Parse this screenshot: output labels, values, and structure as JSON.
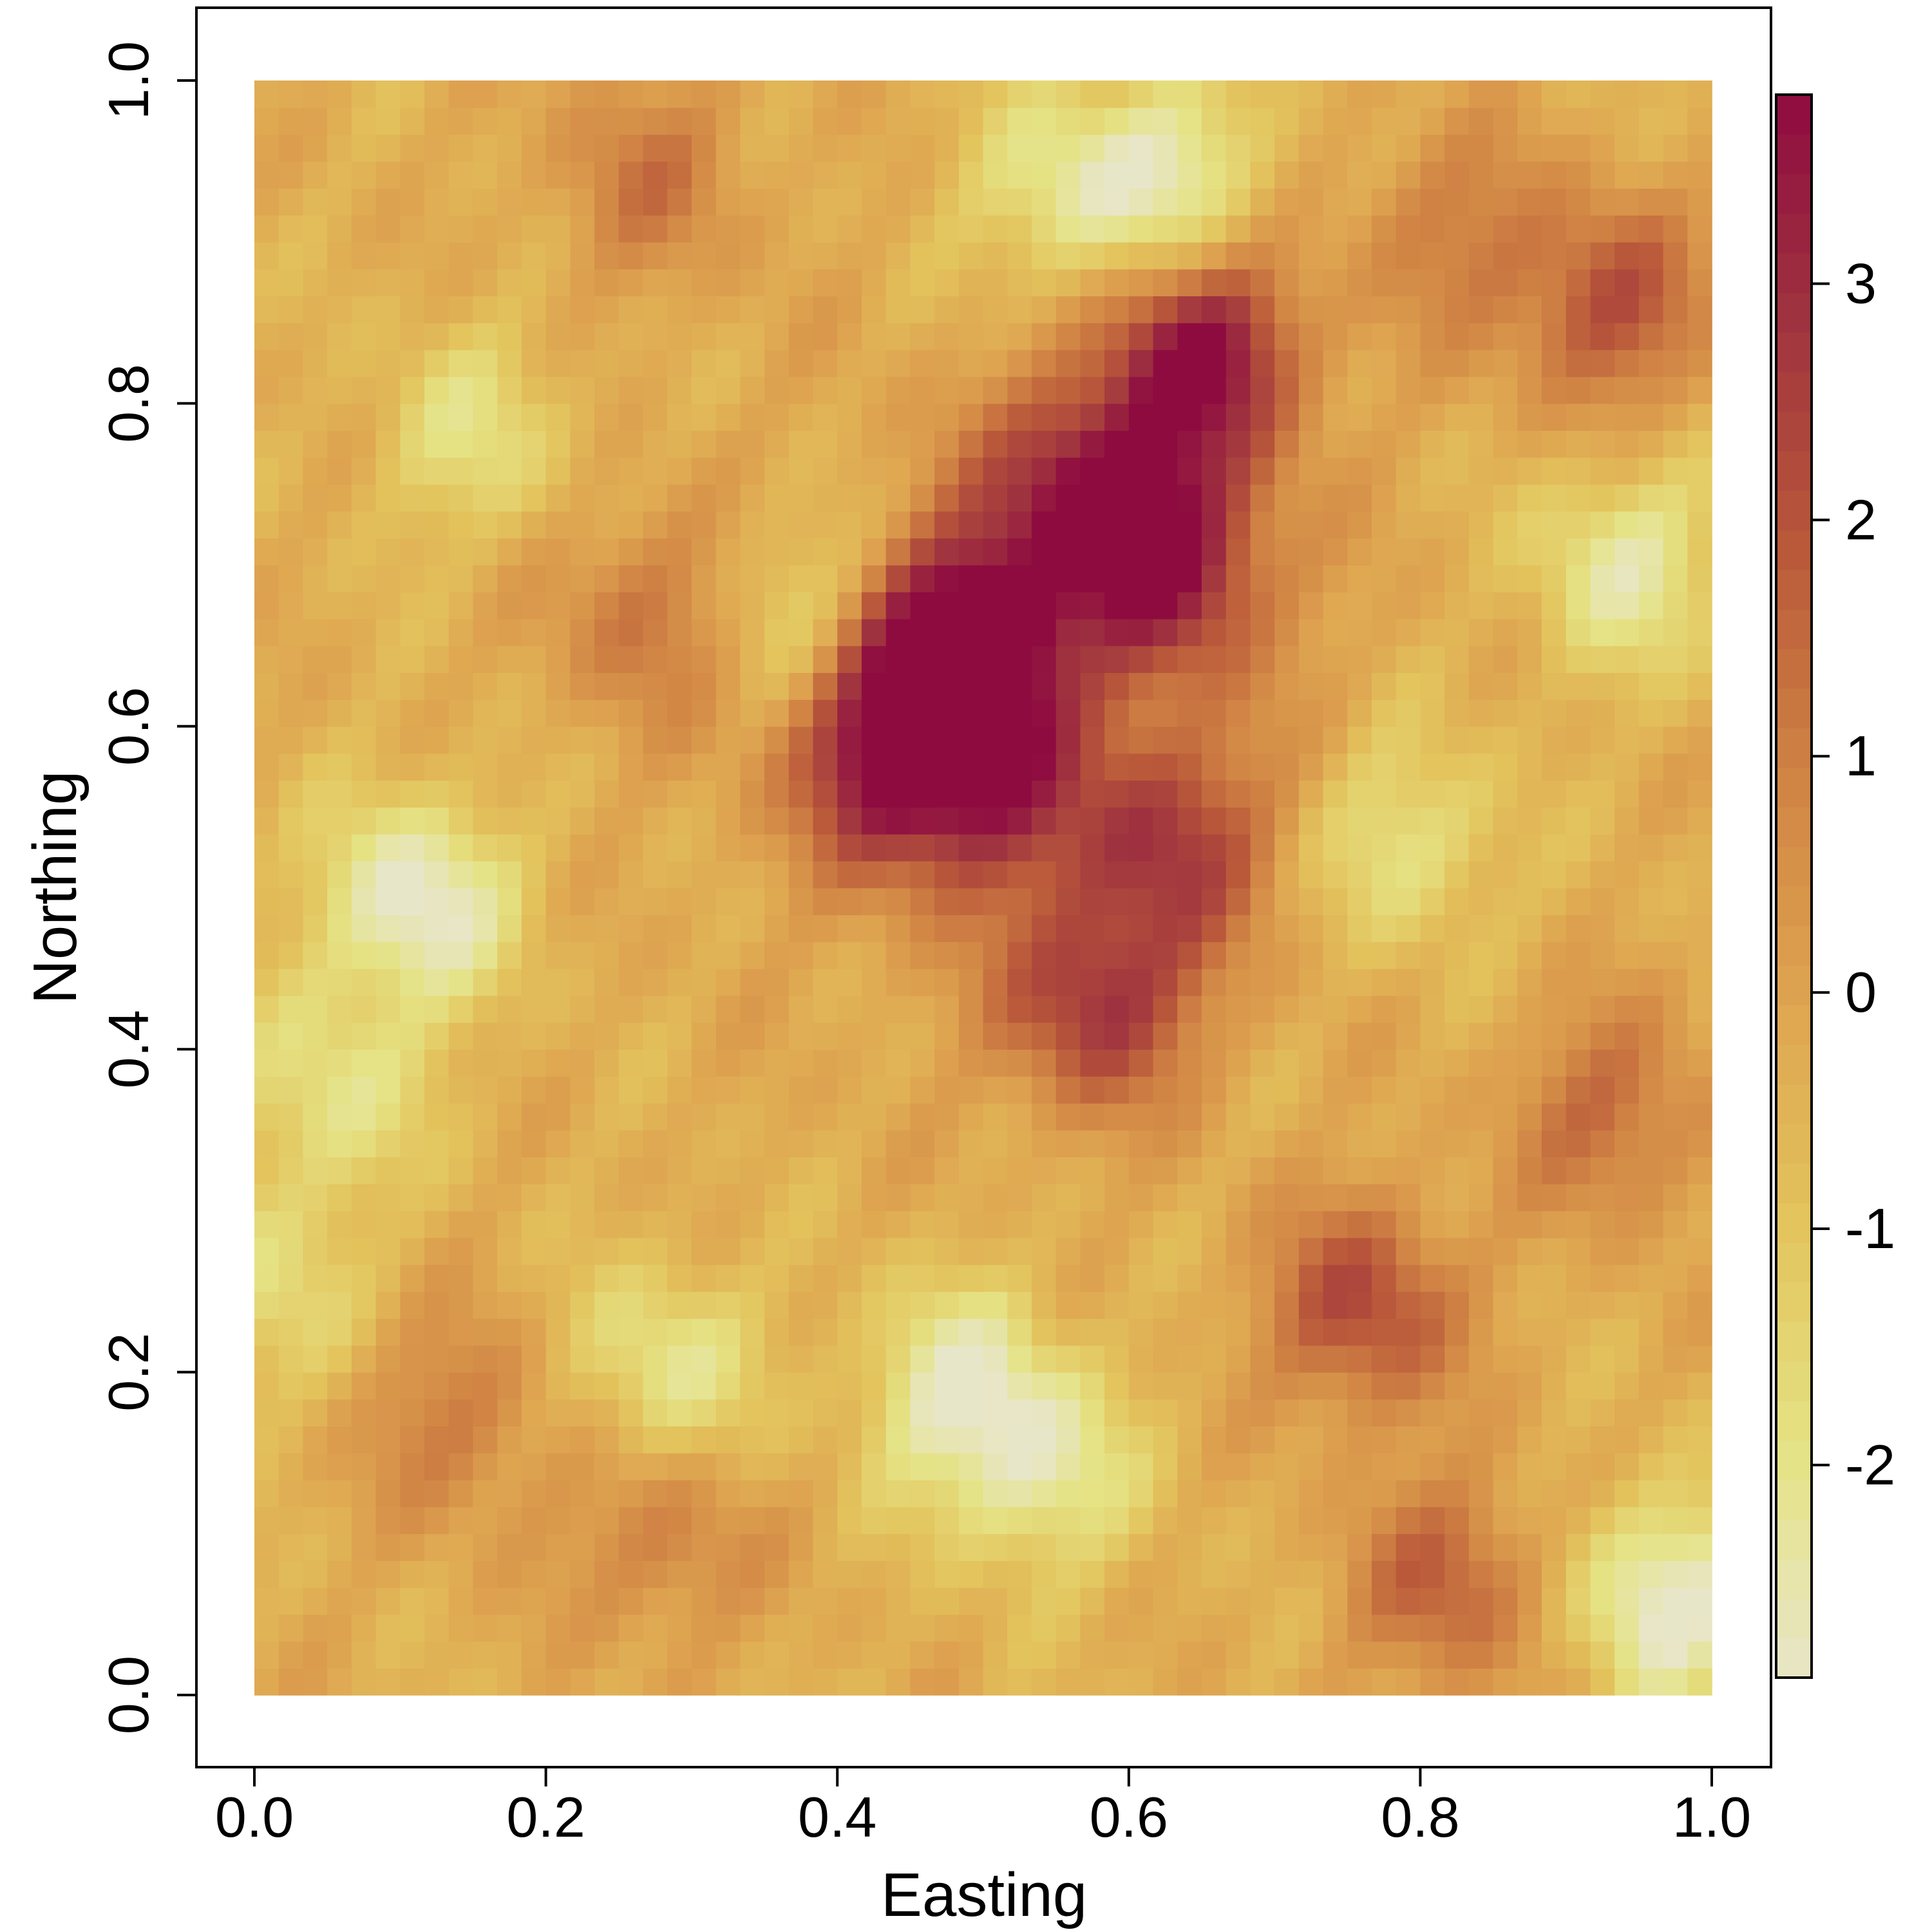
{
  "chart_data": {
    "type": "heatmap",
    "xlabel": "Easting",
    "ylabel": "Northing",
    "xlim": [
      0,
      1
    ],
    "ylim": [
      0,
      1
    ],
    "x_ticks": [
      "0.0",
      "0.2",
      "0.4",
      "0.6",
      "0.8",
      "1.0"
    ],
    "y_ticks": [
      "0.0",
      "0.2",
      "0.4",
      "0.6",
      "0.8",
      "1.0"
    ],
    "colorbar": {
      "range": [
        -2.9,
        3.8
      ],
      "ticks": [
        "-2",
        "-1",
        "0",
        "1",
        "2",
        "3"
      ],
      "tick_values": [
        -2,
        -1,
        0,
        1,
        2,
        3
      ]
    },
    "palette": [
      "#e8e6c8",
      "#e5e385",
      "#e3c45d",
      "#dea450",
      "#d08344",
      "#b9583a",
      "#a0343f",
      "#8e0b40"
    ],
    "grid": false,
    "grid_size": 60,
    "hotspots": [
      {
        "x": 0.65,
        "y": 0.83,
        "value": 3.8
      },
      {
        "x": 0.57,
        "y": 0.75,
        "value": 3.0
      },
      {
        "x": 0.63,
        "y": 0.7,
        "value": 3.0
      },
      {
        "x": 0.5,
        "y": 0.66,
        "value": 2.9
      },
      {
        "x": 0.47,
        "y": 0.63,
        "value": 2.8
      },
      {
        "x": 0.43,
        "y": 0.58,
        "value": 2.7
      },
      {
        "x": 0.5,
        "y": 0.56,
        "value": 2.2
      },
      {
        "x": 0.63,
        "y": 0.53,
        "value": 2.3
      },
      {
        "x": 0.58,
        "y": 0.43,
        "value": 2.7
      },
      {
        "x": 0.93,
        "y": 0.86,
        "value": 2.2
      },
      {
        "x": 0.76,
        "y": 0.24,
        "value": 2.4
      },
      {
        "x": 0.82,
        "y": 0.07,
        "value": 1.8
      },
      {
        "x": 0.93,
        "y": 0.36,
        "value": 1.6
      },
      {
        "x": 0.27,
        "y": 0.67,
        "value": 1.3
      },
      {
        "x": 0.28,
        "y": 0.1,
        "value": 1.2
      },
      {
        "x": 0.14,
        "y": 0.17,
        "value": 1.2
      },
      {
        "x": 0.27,
        "y": 0.94,
        "value": 1.2
      },
      {
        "x": 0.82,
        "y": 0.91,
        "value": 1.1
      },
      {
        "x": 0.11,
        "y": 0.49,
        "value": -2.9
      },
      {
        "x": 0.97,
        "y": 0.06,
        "value": -2.8
      },
      {
        "x": 0.63,
        "y": 0.94,
        "value": -2.3
      },
      {
        "x": 0.94,
        "y": 0.7,
        "value": -2.2
      },
      {
        "x": 0.48,
        "y": 0.19,
        "value": -2.3
      },
      {
        "x": 0.54,
        "y": 0.14,
        "value": -2.1
      },
      {
        "x": 0.28,
        "y": 0.2,
        "value": -2.0
      },
      {
        "x": 0.79,
        "y": 0.53,
        "value": -1.9
      },
      {
        "x": 0.05,
        "y": 0.37,
        "value": -1.8
      },
      {
        "x": 0.0,
        "y": 0.25,
        "value": -1.6
      },
      {
        "x": 0.38,
        "y": 0.67,
        "value": -1.8
      },
      {
        "x": 0.15,
        "y": 0.78,
        "value": -1.6
      },
      {
        "x": 0.55,
        "y": 0.93,
        "value": -1.8
      }
    ]
  }
}
